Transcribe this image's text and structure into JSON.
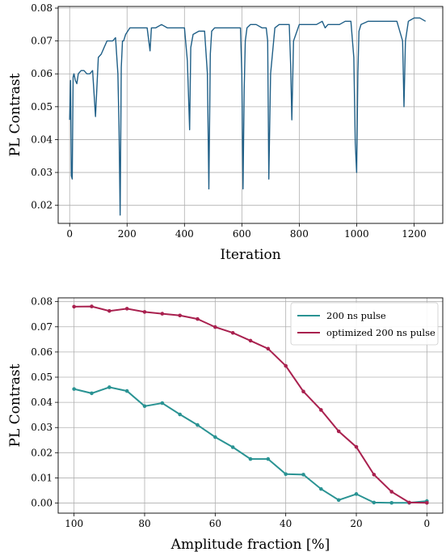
{
  "chart_data": [
    {
      "type": "line",
      "xlabel": "Iteration",
      "ylabel": "PL Contrast",
      "xlim": [
        -40,
        1300
      ],
      "ylim": [
        0.0145,
        0.0805
      ],
      "xticks": [
        0,
        200,
        400,
        600,
        800,
        1000,
        1200
      ],
      "yticks": [
        0.02,
        0.03,
        0.04,
        0.05,
        0.06,
        0.07,
        0.08
      ],
      "ytick_labels": [
        "0.02",
        "0.03",
        "0.04",
        "0.05",
        "0.06",
        "0.07",
        "0.08"
      ],
      "grid": true,
      "color": "#1f5f87",
      "series": [
        {
          "x": [
            0,
            3,
            6,
            9,
            12,
            15,
            20,
            25,
            30,
            40,
            50,
            60,
            70,
            80,
            90,
            100,
            110,
            120,
            130,
            140,
            150,
            160,
            168,
            172,
            176,
            180,
            184,
            188,
            195,
            210,
            230,
            250,
            270,
            280,
            285,
            300,
            320,
            340,
            360,
            380,
            400,
            410,
            418,
            422,
            430,
            450,
            470,
            480,
            485,
            490,
            495,
            505,
            520,
            540,
            560,
            580,
            595,
            600,
            604,
            608,
            612,
            618,
            630,
            650,
            670,
            685,
            690,
            694,
            700,
            715,
            730,
            750,
            765,
            770,
            774,
            780,
            800,
            820,
            840,
            860,
            880,
            890,
            900,
            920,
            940,
            960,
            980,
            990,
            995,
            1000,
            1004,
            1008,
            1015,
            1040,
            1060,
            1080,
            1100,
            1120,
            1140,
            1160,
            1165,
            1170,
            1180,
            1200,
            1220,
            1240
          ],
          "y": [
            0.046,
            0.058,
            0.029,
            0.028,
            0.059,
            0.06,
            0.058,
            0.057,
            0.06,
            0.061,
            0.061,
            0.06,
            0.06,
            0.061,
            0.047,
            0.065,
            0.066,
            0.068,
            0.07,
            0.07,
            0.07,
            0.071,
            0.06,
            0.044,
            0.017,
            0.062,
            0.07,
            0.07,
            0.072,
            0.074,
            0.074,
            0.074,
            0.074,
            0.067,
            0.074,
            0.074,
            0.075,
            0.074,
            0.074,
            0.074,
            0.074,
            0.064,
            0.043,
            0.068,
            0.072,
            0.073,
            0.073,
            0.06,
            0.025,
            0.066,
            0.073,
            0.074,
            0.074,
            0.074,
            0.074,
            0.074,
            0.074,
            0.06,
            0.025,
            0.055,
            0.07,
            0.074,
            0.075,
            0.075,
            0.074,
            0.074,
            0.07,
            0.028,
            0.06,
            0.074,
            0.075,
            0.075,
            0.075,
            0.063,
            0.046,
            0.07,
            0.075,
            0.075,
            0.075,
            0.075,
            0.076,
            0.074,
            0.075,
            0.075,
            0.075,
            0.076,
            0.076,
            0.065,
            0.039,
            0.03,
            0.06,
            0.073,
            0.075,
            0.076,
            0.076,
            0.076,
            0.076,
            0.076,
            0.076,
            0.07,
            0.05,
            0.07,
            0.076,
            0.077,
            0.077,
            0.076
          ]
        }
      ]
    },
    {
      "type": "line",
      "xlabel": "Amplitude fraction [%]",
      "ylabel": "PL Contrast",
      "xlim": [
        104.5,
        -4.5
      ],
      "ylim": [
        -0.004,
        0.0815
      ],
      "xticks": [
        100,
        80,
        60,
        40,
        20,
        0
      ],
      "yticks": [
        0.0,
        0.01,
        0.02,
        0.03,
        0.04,
        0.05,
        0.06,
        0.07,
        0.08
      ],
      "ytick_labels": [
        "0.00",
        "0.01",
        "0.02",
        "0.03",
        "0.04",
        "0.05",
        "0.06",
        "0.07",
        "0.08"
      ],
      "grid": true,
      "legend": "top-right",
      "x": [
        100,
        95,
        90,
        85,
        80,
        75,
        70,
        65,
        60,
        55,
        50,
        45,
        40,
        35,
        30,
        25,
        20,
        15,
        10,
        5,
        0
      ],
      "series": [
        {
          "name": "200 ns pulse",
          "color": "#2a9393",
          "values": [
            0.0453,
            0.0436,
            0.046,
            0.0445,
            0.0385,
            0.0397,
            0.0352,
            0.031,
            0.0262,
            0.0222,
            0.0175,
            0.0175,
            0.0115,
            0.0113,
            0.0056,
            0.0012,
            0.0036,
            0.0002,
            0.0001,
            0.0001,
            0.0008
          ]
        },
        {
          "name": "optimized 200 ns pulse",
          "color": "#a9214f",
          "values": [
            0.078,
            0.0781,
            0.0763,
            0.0772,
            0.0759,
            0.0752,
            0.0745,
            0.0731,
            0.0699,
            0.0676,
            0.0645,
            0.0613,
            0.0545,
            0.0443,
            0.037,
            0.0285,
            0.0223,
            0.0113,
            0.0045,
            0.0002,
            0.0001
          ]
        }
      ]
    }
  ]
}
